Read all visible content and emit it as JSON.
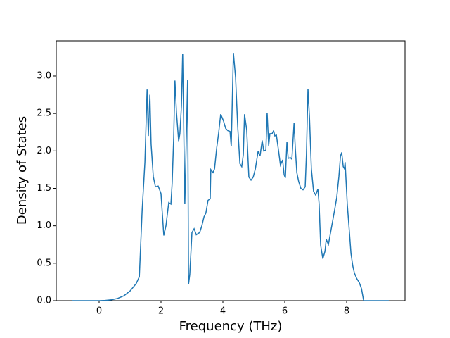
{
  "chart_data": {
    "type": "line",
    "x_label": "Frequency (THz)",
    "y_label": "Density of States",
    "x": [
      -0.886,
      -0.4,
      0,
      0.2,
      0.4,
      0.6,
      0.8,
      1.0,
      1.2,
      1.3,
      1.39,
      1.48,
      1.55,
      1.59,
      1.64,
      1.68,
      1.75,
      1.82,
      1.91,
      2.0,
      2.09,
      2.16,
      2.25,
      2.32,
      2.36,
      2.41,
      2.45,
      2.5,
      2.57,
      2.61,
      2.66,
      2.7,
      2.77,
      2.86,
      2.89,
      2.93,
      3.0,
      3.07,
      3.14,
      3.25,
      3.32,
      3.39,
      3.45,
      3.52,
      3.59,
      3.61,
      3.68,
      3.73,
      3.8,
      3.86,
      3.93,
      4.02,
      4.09,
      4.16,
      4.23,
      4.27,
      4.34,
      4.41,
      4.48,
      4.55,
      4.61,
      4.66,
      4.7,
      4.77,
      4.84,
      4.91,
      4.98,
      5.05,
      5.14,
      5.2,
      5.27,
      5.32,
      5.39,
      5.43,
      5.48,
      5.52,
      5.59,
      5.64,
      5.68,
      5.73,
      5.8,
      5.86,
      5.93,
      5.98,
      6.02,
      6.07,
      6.11,
      6.18,
      6.23,
      6.3,
      6.34,
      6.39,
      6.45,
      6.52,
      6.59,
      6.66,
      6.7,
      6.75,
      6.8,
      6.86,
      6.93,
      7.0,
      7.07,
      7.11,
      7.16,
      7.23,
      7.3,
      7.34,
      7.41,
      7.48,
      7.55,
      7.61,
      7.68,
      7.75,
      7.8,
      7.84,
      7.89,
      7.93,
      7.95,
      8.02,
      8.09,
      8.14,
      8.2,
      8.25,
      8.32,
      8.41,
      8.48,
      8.55,
      9.36
    ],
    "series": [
      {
        "color": "#1f77b4",
        "values": [
          0,
          0,
          0,
          0.003,
          0.012,
          0.03,
          0.065,
          0.13,
          0.23,
          0.32,
          1.2,
          1.85,
          2.82,
          2.2,
          2.75,
          2.09,
          1.66,
          1.52,
          1.53,
          1.43,
          0.87,
          1.0,
          1.31,
          1.29,
          1.57,
          2.18,
          2.94,
          2.51,
          2.13,
          2.23,
          2.6,
          3.3,
          1.29,
          2.95,
          0.22,
          0.35,
          0.91,
          0.96,
          0.88,
          0.91,
          1.0,
          1.12,
          1.17,
          1.34,
          1.36,
          1.75,
          1.71,
          1.76,
          2.04,
          2.23,
          2.49,
          2.4,
          2.3,
          2.27,
          2.26,
          2.06,
          3.31,
          2.98,
          2.32,
          1.83,
          1.79,
          1.95,
          2.49,
          2.28,
          1.65,
          1.61,
          1.65,
          1.76,
          2.0,
          1.93,
          2.14,
          2.0,
          2.01,
          2.51,
          2.07,
          2.23,
          2.23,
          2.27,
          2.2,
          2.21,
          2.0,
          1.81,
          1.88,
          1.68,
          1.64,
          2.12,
          1.9,
          1.91,
          1.89,
          2.37,
          2.04,
          1.71,
          1.59,
          1.5,
          1.48,
          1.52,
          1.95,
          2.83,
          2.44,
          1.76,
          1.46,
          1.41,
          1.49,
          1.29,
          0.74,
          0.56,
          0.66,
          0.82,
          0.75,
          0.91,
          1.07,
          1.21,
          1.38,
          1.66,
          1.93,
          1.98,
          1.79,
          1.76,
          1.85,
          1.29,
          0.91,
          0.63,
          0.46,
          0.37,
          0.3,
          0.24,
          0.16,
          0,
          0
        ]
      }
    ],
    "xlim": [
      -1.386,
      9.886
    ],
    "ylim": [
      0,
      3.47
    ],
    "xticks": [
      0,
      2,
      4,
      6,
      8
    ],
    "yticks": [
      {
        "value": 0,
        "label": "0.0"
      },
      0.5,
      {
        "value": 1,
        "label": "1.0"
      },
      1.5,
      {
        "value": 2,
        "label": "2.0"
      },
      2.5,
      {
        "value": 3,
        "label": "3.0"
      }
    ]
  }
}
